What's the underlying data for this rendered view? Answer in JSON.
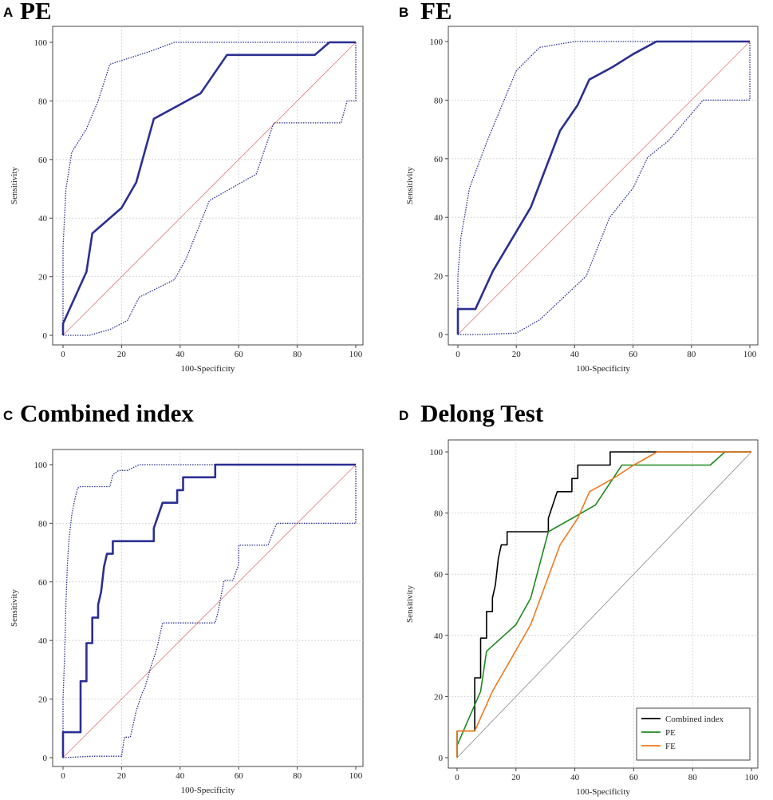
{
  "chart_data": [
    {
      "type": "line",
      "panel_letter": "A",
      "title": "PE",
      "xlabel": "100-Specificity",
      "ylabel": "Sensitivity",
      "xlim": [
        0,
        100
      ],
      "ylim": [
        0,
        100
      ],
      "xticks": [
        "0",
        "20",
        "40",
        "60",
        "80",
        "100"
      ],
      "yticks": [
        "0",
        "20",
        "40",
        "60",
        "80",
        "100"
      ],
      "grid": true,
      "series": [
        {
          "name": "ROC curve",
          "style": "solid-thick",
          "color": "#2B2F92",
          "x": [
            0,
            0,
            8,
            10,
            20,
            25,
            31,
            47,
            56,
            86,
            91,
            100
          ],
          "y": [
            0,
            4,
            21.7,
            34.8,
            43.5,
            52.2,
            73.9,
            82.6,
            95.7,
            95.7,
            100,
            100
          ]
        },
        {
          "name": "Upper 95% CI",
          "style": "dotted",
          "color": "#2B2F92",
          "x": [
            0,
            0,
            1,
            3,
            8,
            12,
            16,
            30,
            38,
            40,
            70,
            90,
            100
          ],
          "y": [
            0,
            30,
            50,
            62.5,
            70.5,
            80,
            92.5,
            97,
            100,
            100,
            100,
            100,
            100
          ]
        },
        {
          "name": "Lower 95% CI",
          "style": "dotted",
          "color": "#2B2F92",
          "x": [
            0,
            9,
            16,
            22,
            26,
            38,
            42,
            50,
            66,
            72,
            90,
            95,
            97,
            100,
            100
          ],
          "y": [
            0,
            0,
            2,
            5,
            13,
            19,
            26,
            46,
            55,
            72.5,
            72.5,
            72.5,
            80,
            80,
            100
          ]
        },
        {
          "name": "Reference line",
          "style": "thin",
          "color": "#E07A7A",
          "x": [
            0,
            100
          ],
          "y": [
            0,
            100
          ]
        }
      ]
    },
    {
      "type": "line",
      "panel_letter": "B",
      "title": "FE",
      "xlabel": "100-Specificity",
      "ylabel": "Sensitivity",
      "xlim": [
        0,
        100
      ],
      "ylim": [
        0,
        100
      ],
      "xticks": [
        "0",
        "20",
        "40",
        "60",
        "80",
        "100"
      ],
      "yticks": [
        "0",
        "20",
        "40",
        "60",
        "80",
        "100"
      ],
      "grid": true,
      "series": [
        {
          "name": "ROC curve",
          "style": "solid-thick",
          "color": "#2B2F92",
          "x": [
            0,
            0,
            6,
            12,
            25,
            35,
            41,
            45,
            53,
            60,
            68,
            100
          ],
          "y": [
            0,
            8.7,
            8.7,
            21.7,
            43.5,
            69.6,
            78.3,
            87,
            91.3,
            95.7,
            100,
            100
          ]
        },
        {
          "name": "Upper 95% CI",
          "style": "dotted",
          "color": "#2B2F92",
          "x": [
            0,
            0,
            1,
            4,
            10,
            20,
            28,
            40,
            50,
            60,
            70,
            100
          ],
          "y": [
            0,
            20,
            33,
            50,
            66,
            90,
            98,
            100,
            100,
            100,
            100,
            100
          ]
        },
        {
          "name": "Lower 95% CI",
          "style": "dotted",
          "color": "#2B2F92",
          "x": [
            0,
            8,
            20,
            28,
            36,
            44,
            52,
            60,
            65,
            72,
            84,
            100,
            100
          ],
          "y": [
            0,
            0,
            0.5,
            5,
            12.5,
            20,
            40,
            50,
            60.5,
            66,
            80,
            80,
            100
          ]
        },
        {
          "name": "Reference line",
          "style": "thin",
          "color": "#E07A7A",
          "x": [
            0,
            100
          ],
          "y": [
            0,
            100
          ]
        }
      ]
    },
    {
      "type": "line",
      "panel_letter": "C",
      "title": "Combined index",
      "xlabel": "100-Specificity",
      "ylabel": "Sensitivity",
      "xlim": [
        0,
        100
      ],
      "ylim": [
        0,
        100
      ],
      "xticks": [
        "0",
        "20",
        "40",
        "60",
        "80",
        "100"
      ],
      "yticks": [
        "0",
        "20",
        "40",
        "60",
        "80",
        "100"
      ],
      "grid": true,
      "series": [
        {
          "name": "ROC curve",
          "style": "solid-thick",
          "color": "#2B2F92",
          "x": [
            0,
            0,
            6,
            6,
            8,
            8,
            10,
            10,
            12,
            12,
            13,
            14,
            15,
            17,
            17,
            31,
            31,
            34,
            39,
            39,
            41,
            41,
            52,
            52,
            54,
            100
          ],
          "y": [
            0,
            8.7,
            8.7,
            26.1,
            26.1,
            39.1,
            39.1,
            47.8,
            47.8,
            52.2,
            56.5,
            65.2,
            69.6,
            69.6,
            73.9,
            73.9,
            78.3,
            87,
            87,
            91.3,
            91.3,
            95.7,
            95.7,
            100,
            100,
            100
          ]
        },
        {
          "name": "Upper 95% CI",
          "style": "dotted",
          "color": "#2B2F92",
          "x": [
            0,
            0,
            0.5,
            1,
            1.5,
            2,
            3,
            4,
            5,
            6,
            10,
            16,
            17,
            19,
            22,
            26,
            40,
            100
          ],
          "y": [
            0,
            20,
            33,
            53,
            66,
            74,
            83,
            88,
            92,
            92.5,
            92.5,
            92.5,
            96.5,
            98,
            98,
            100,
            100,
            100
          ]
        },
        {
          "name": "Lower 95% CI",
          "style": "dotted",
          "color": "#2B2F92",
          "x": [
            0,
            10,
            20,
            21,
            23,
            25,
            27,
            28,
            30,
            32,
            34,
            52,
            53,
            55,
            58,
            60,
            60,
            70,
            73,
            100,
            100
          ],
          "y": [
            0,
            0.5,
            0.5,
            7,
            7,
            16,
            22,
            24,
            31,
            37,
            46,
            46,
            50,
            60.5,
            60.5,
            66,
            72.5,
            72.5,
            80,
            80,
            100
          ]
        },
        {
          "name": "Reference line",
          "style": "thin",
          "color": "#E07A7A",
          "x": [
            0,
            100
          ],
          "y": [
            0,
            100
          ]
        }
      ]
    },
    {
      "type": "line",
      "panel_letter": "D",
      "title": "Delong Test",
      "xlabel": "100-Specificity",
      "ylabel": "Sensitivity",
      "xlim": [
        0,
        100
      ],
      "ylim": [
        0,
        100
      ],
      "xticks": [
        "0",
        "20",
        "40",
        "60",
        "80",
        "100"
      ],
      "yticks": [
        "0",
        "20",
        "40",
        "60",
        "80",
        "100"
      ],
      "grid": true,
      "legend": "bottom-right",
      "series": [
        {
          "name": "Combined index",
          "color": "#000000",
          "x": [
            0,
            0,
            6,
            6,
            8,
            8,
            10,
            10,
            12,
            12,
            13,
            14,
            15,
            17,
            17,
            31,
            31,
            34,
            39,
            39,
            41,
            41,
            52,
            52,
            54,
            100
          ],
          "y": [
            0,
            8.7,
            8.7,
            26.1,
            26.1,
            39.1,
            39.1,
            47.8,
            47.8,
            52.2,
            56.5,
            65.2,
            69.6,
            69.6,
            73.9,
            73.9,
            78.3,
            87,
            87,
            91.3,
            91.3,
            95.7,
            95.7,
            100,
            100,
            100
          ]
        },
        {
          "name": "PE",
          "color": "#1E8A1E",
          "x": [
            0,
            0,
            8,
            10,
            20,
            25,
            31,
            47,
            56,
            86,
            91,
            100
          ],
          "y": [
            0,
            4,
            21.7,
            34.8,
            43.5,
            52.2,
            73.9,
            82.6,
            95.7,
            95.7,
            100,
            100
          ]
        },
        {
          "name": "FE",
          "color": "#F07A1E",
          "x": [
            0,
            0,
            6,
            12,
            25,
            35,
            41,
            45,
            53,
            60,
            68,
            100
          ],
          "y": [
            0,
            8.7,
            8.7,
            21.7,
            43.5,
            69.6,
            78.3,
            87,
            91.3,
            95.7,
            100,
            100
          ]
        },
        {
          "name": "Reference line",
          "color": "#888888",
          "legend": false,
          "x": [
            0,
            100
          ],
          "y": [
            0,
            100
          ]
        }
      ]
    }
  ]
}
